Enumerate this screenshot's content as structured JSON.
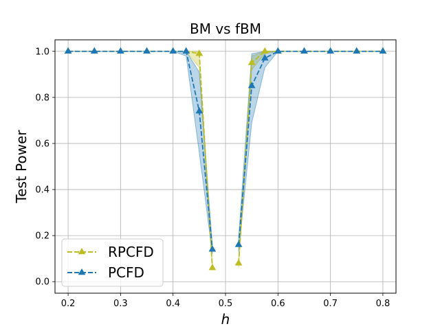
{
  "chart_data": {
    "type": "line",
    "title": "BM vs fBM",
    "xlabel": "h",
    "ylabel": "Test Power",
    "xlim": [
      0.175,
      0.825
    ],
    "ylim": [
      -0.05,
      1.05
    ],
    "xticks": [
      0.2,
      0.3,
      0.4,
      0.5,
      0.6,
      0.7,
      0.8
    ],
    "xtick_labels": [
      "0.2",
      "0.3",
      "0.4",
      "0.5",
      "0.6",
      "0.7",
      "0.8"
    ],
    "yticks": [
      0.0,
      0.2,
      0.4,
      0.6,
      0.8,
      1.0
    ],
    "ytick_labels": [
      "0.0",
      "0.2",
      "0.4",
      "0.6",
      "0.8",
      "1.0"
    ],
    "grid": true,
    "legend_position": "lower-left",
    "series": [
      {
        "name": "RPCFD",
        "color": "#bcbd22",
        "marker": "triangle",
        "linestyle": "dashed",
        "segments": [
          {
            "x": [
              0.2,
              0.25,
              0.3,
              0.35,
              0.4,
              0.425,
              0.45,
              0.475
            ],
            "y": [
              1.0,
              1.0,
              1.0,
              1.0,
              1.0,
              1.0,
              0.99,
              0.06
            ],
            "band_lower": [
              1.0,
              1.0,
              1.0,
              1.0,
              1.0,
              1.0,
              0.93,
              0.05
            ],
            "band_upper": [
              1.0,
              1.0,
              1.0,
              1.0,
              1.0,
              1.0,
              1.0,
              0.08
            ]
          },
          {
            "x": [
              0.525,
              0.55,
              0.575,
              0.6,
              0.65,
              0.7,
              0.75,
              0.8
            ],
            "y": [
              0.08,
              0.95,
              1.0,
              1.0,
              1.0,
              1.0,
              1.0,
              1.0
            ],
            "band_lower": [
              0.06,
              0.92,
              0.99,
              1.0,
              1.0,
              1.0,
              1.0,
              1.0
            ],
            "band_upper": [
              0.1,
              0.98,
              1.0,
              1.0,
              1.0,
              1.0,
              1.0,
              1.0
            ]
          }
        ]
      },
      {
        "name": "PCFD",
        "color": "#1f77b4",
        "marker": "triangle",
        "linestyle": "dashed",
        "segments": [
          {
            "x": [
              0.2,
              0.25,
              0.3,
              0.35,
              0.4,
              0.425,
              0.45,
              0.475
            ],
            "y": [
              1.0,
              1.0,
              1.0,
              1.0,
              1.0,
              1.0,
              0.74,
              0.14
            ],
            "band_lower": [
              1.0,
              1.0,
              1.0,
              1.0,
              1.0,
              0.98,
              0.56,
              0.12
            ],
            "band_upper": [
              1.0,
              1.0,
              1.0,
              1.0,
              1.0,
              1.0,
              0.91,
              0.16
            ]
          },
          {
            "x": [
              0.525,
              0.55,
              0.575,
              0.6,
              0.65,
              0.7,
              0.75,
              0.8
            ],
            "y": [
              0.16,
              0.85,
              0.97,
              1.0,
              1.0,
              1.0,
              1.0,
              1.0
            ],
            "band_lower": [
              0.13,
              0.69,
              0.93,
              1.0,
              1.0,
              1.0,
              1.0,
              1.0
            ],
            "band_upper": [
              0.19,
              0.99,
              1.0,
              1.0,
              1.0,
              1.0,
              1.0,
              1.0
            ]
          }
        ]
      }
    ]
  }
}
